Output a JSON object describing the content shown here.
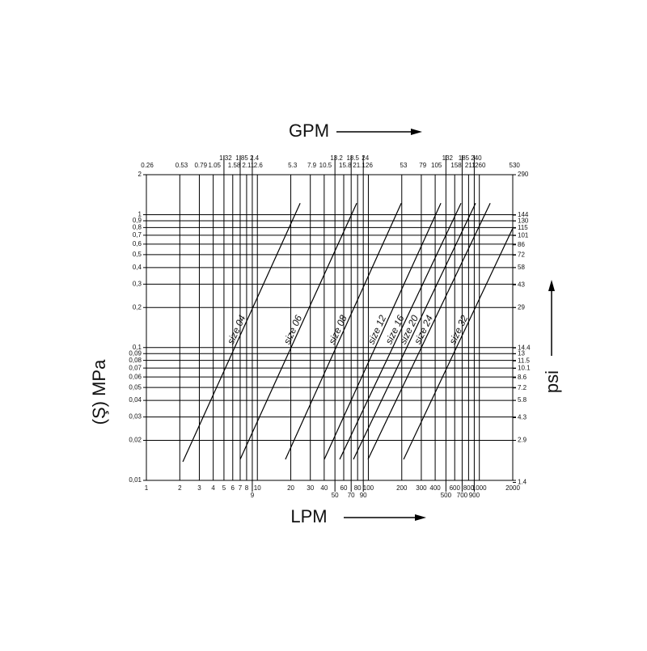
{
  "chart_data": {
    "type": "line",
    "x_title": "LPM",
    "x2_title": "GPM",
    "y_title": "(Ş) MPa",
    "y2_title": "psi",
    "xscale": "log",
    "yscale": "log",
    "grid": true,
    "color": "#000000",
    "xlim": [
      1,
      2000
    ],
    "xticks": [
      1,
      2,
      3,
      4,
      5,
      6,
      7,
      8,
      9,
      10,
      20,
      30,
      40,
      50,
      60,
      70,
      80,
      90,
      100,
      200,
      300,
      400,
      500,
      600,
      700,
      800,
      900,
      1000,
      2000
    ],
    "x2lim": [
      0.2642,
      528.3
    ],
    "x2ticks": [
      0.26,
      0.53,
      0.79,
      1.05,
      1.32,
      1.58,
      1.85,
      2.11,
      2.4,
      2.6,
      5.3,
      7.9,
      10.5,
      13.2,
      15.8,
      18.5,
      21.1,
      24,
      26,
      53,
      79,
      105,
      132,
      158,
      185,
      211,
      240,
      260,
      530
    ],
    "ylim": [
      0.01,
      2
    ],
    "yticks": [
      {
        "value": 0.01,
        "label": "0,01"
      },
      {
        "value": 0.02,
        "label": "0,02"
      },
      {
        "value": 0.03,
        "label": "0,03"
      },
      {
        "value": 0.04,
        "label": "0,04"
      },
      {
        "value": 0.05,
        "label": "0,05"
      },
      {
        "value": 0.06,
        "label": "0,06"
      },
      {
        "value": 0.07,
        "label": "0,07"
      },
      {
        "value": 0.08,
        "label": "0,08"
      },
      {
        "value": 0.09,
        "label": "0,09"
      },
      {
        "value": 0.1,
        "label": "0,1"
      },
      {
        "value": 0.2,
        "label": "0,2"
      },
      {
        "value": 0.3,
        "label": "0,3"
      },
      {
        "value": 0.4,
        "label": "0,4"
      },
      {
        "value": 0.5,
        "label": "0,5"
      },
      {
        "value": 0.6,
        "label": "0,6"
      },
      {
        "value": 0.7,
        "label": "0,7"
      },
      {
        "value": 0.8,
        "label": "0,8"
      },
      {
        "value": 0.9,
        "label": "0,9"
      },
      1,
      2
    ],
    "y2lim": [
      1.4504,
      290.08
    ],
    "y2ticks": [
      1.4,
      2.9,
      4.3,
      5.8,
      7.2,
      8.6,
      10.1,
      11.5,
      13,
      14.4,
      29,
      43,
      58,
      72,
      86,
      101,
      115,
      130,
      144,
      290
    ],
    "series": [
      {
        "name": "size 04",
        "x": [
          2.13,
          24.3
        ],
        "values": [
          0.0138,
          1.22
        ]
      },
      {
        "name": "size 06",
        "x": [
          7.0,
          78.5
        ],
        "values": [
          0.0144,
          1.22
        ]
      },
      {
        "name": "size 08",
        "x": [
          17.9,
          198
        ],
        "values": [
          0.0144,
          1.22
        ]
      },
      {
        "name": "size 12",
        "x": [
          40.1,
          450
        ],
        "values": [
          0.0144,
          1.22
        ]
      },
      {
        "name": "size 16",
        "x": [
          55.2,
          684
        ],
        "values": [
          0.0144,
          1.22
        ]
      },
      {
        "name": "size 20",
        "x": [
          73.4,
          925
        ],
        "values": [
          0.0144,
          1.22
        ]
      },
      {
        "name": "size 24",
        "x": [
          99.3,
          1253
        ],
        "values": [
          0.0144,
          1.22
        ]
      },
      {
        "name": "size 32",
        "x": [
          208,
          2000
        ],
        "values": [
          0.0144,
          0.79
        ]
      }
    ]
  }
}
